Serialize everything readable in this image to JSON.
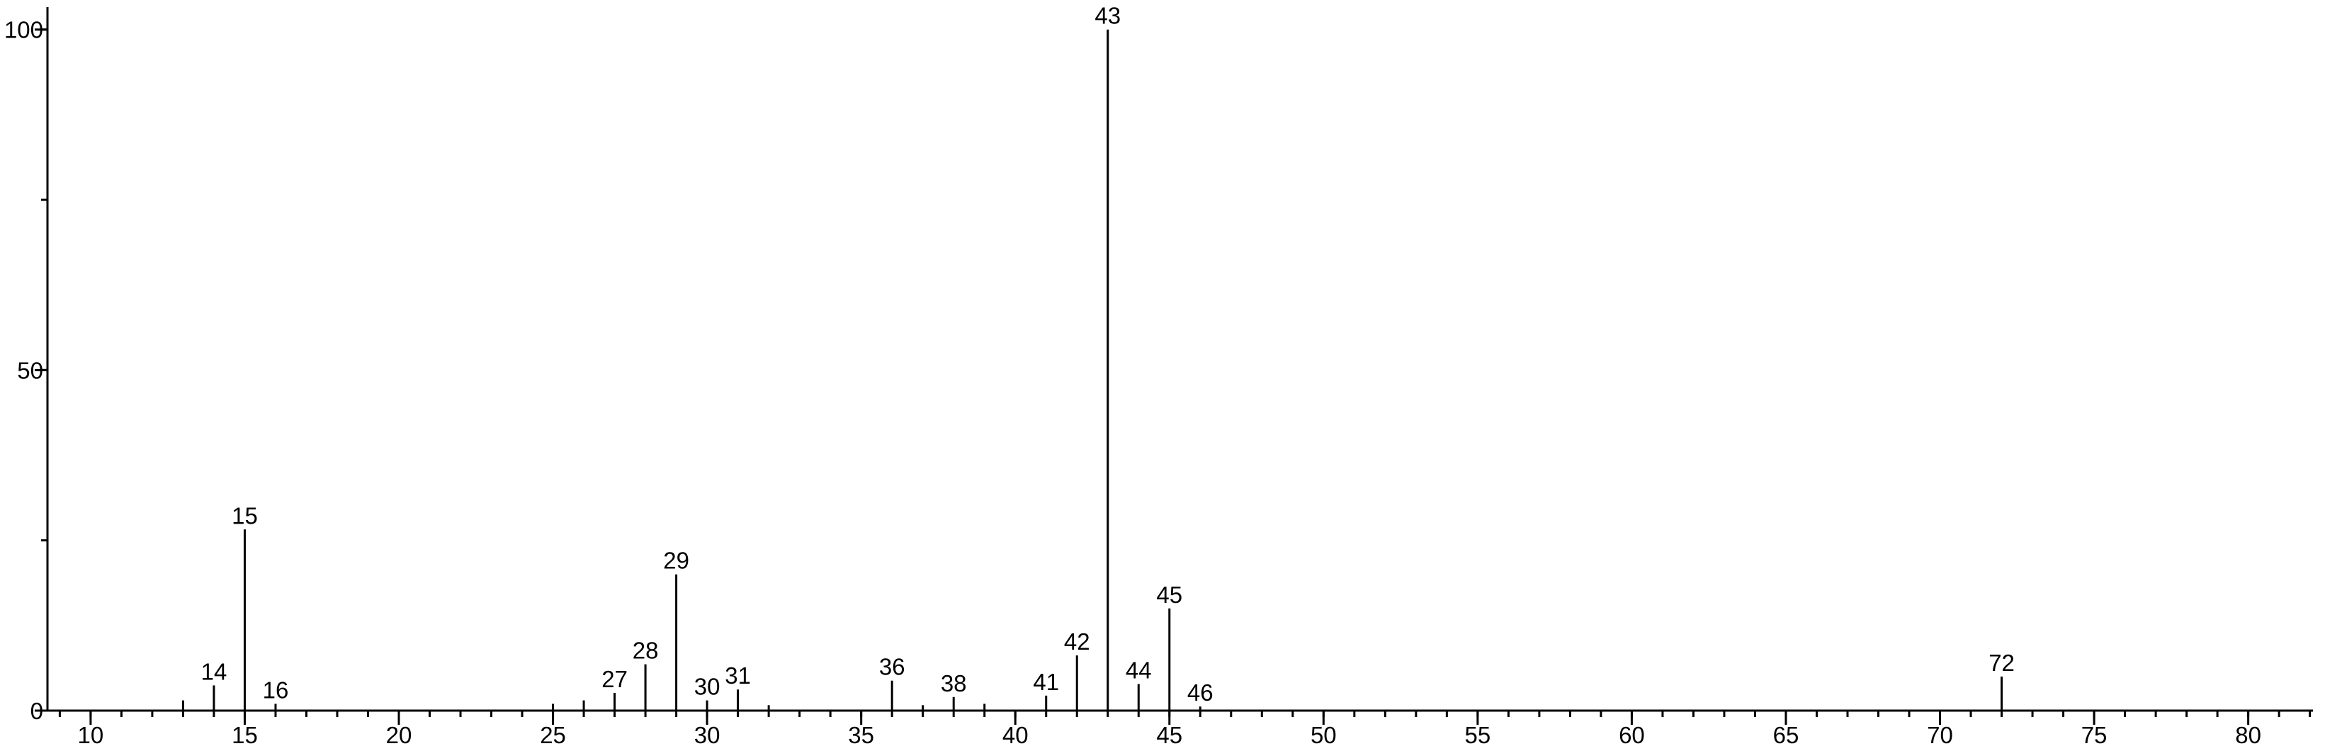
{
  "chart_data": {
    "type": "stem",
    "series": [
      {
        "color": "#000000",
        "show_labels": true,
        "x": [
          14,
          15,
          16,
          27,
          28,
          29,
          30,
          31,
          36,
          38,
          41,
          42,
          43,
          44,
          45,
          46,
          72
        ],
        "values": [
          3.7,
          26.6,
          1,
          2.6,
          6.8,
          20,
          1.5,
          3.1,
          4.4,
          2,
          2.2,
          8.1,
          100,
          3.9,
          15,
          0.6,
          5
        ]
      },
      {
        "color": "#000000",
        "show_labels": false,
        "x": [
          13,
          25,
          26,
          32,
          37,
          39
        ],
        "values": [
          1.5,
          1,
          1.5,
          0.8,
          0.8,
          1
        ]
      }
    ],
    "xlim": [
      8.6,
      82.1
    ],
    "xticks": [
      10,
      15,
      20,
      25,
      30,
      35,
      40,
      45,
      50,
      55,
      60,
      65,
      70,
      75,
      80
    ],
    "xminor_step": 1,
    "ylim": [
      0,
      103.3
    ],
    "yticks": [
      0,
      50,
      100
    ],
    "yminor_step": 25
  }
}
